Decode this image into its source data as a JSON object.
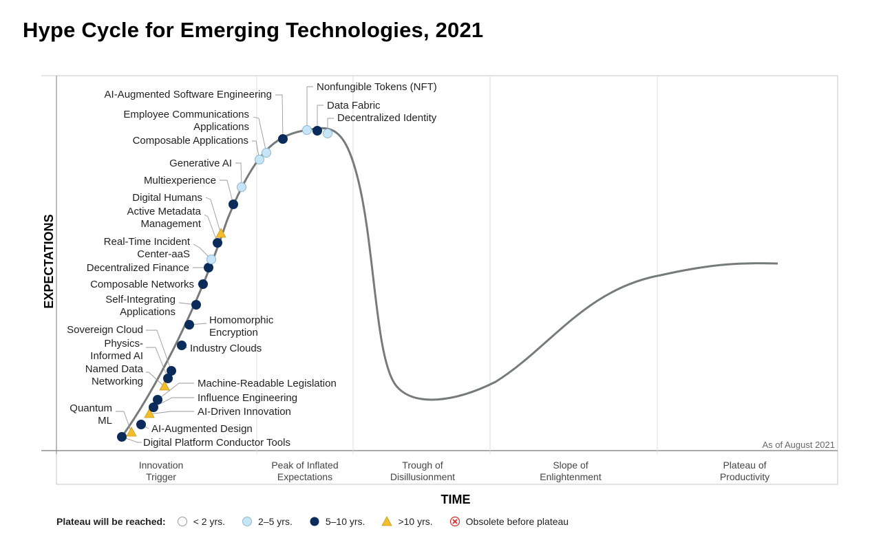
{
  "title": "Hype Cycle for Emerging Technologies, 2021",
  "y_axis_label": "EXPECTATIONS",
  "x_axis_label": "TIME",
  "note": "As of August 2021",
  "phases": [
    {
      "line1": "Innovation",
      "line2": "Trigger"
    },
    {
      "line1": "Peak of Inflated",
      "line2": "Expectations"
    },
    {
      "line1": "Trough of",
      "line2": "Disillusionment"
    },
    {
      "line1": "Slope of",
      "line2": "Enlightenment"
    },
    {
      "line1": "Plateau of",
      "line2": "Productivity"
    }
  ],
  "legend": {
    "title": "Plateau will be reached:",
    "items": [
      {
        "symbol": "white",
        "label": "< 2 yrs."
      },
      {
        "symbol": "light",
        "label": "2–5 yrs."
      },
      {
        "symbol": "dark",
        "label": "5–10 yrs."
      },
      {
        "symbol": "triangle",
        "label": ">10 yrs."
      },
      {
        "symbol": "obsolete",
        "label": "Obsolete before plateau"
      }
    ]
  },
  "colors": {
    "dark": "#0b2c5a",
    "light": "#c6e6f7",
    "triangle": "#f2be2c",
    "curve": "#757b7a",
    "obsolete": "#d62b2b"
  },
  "technologies": [
    {
      "lines": [
        "Digital Platform Conductor Tools"
      ],
      "category": "dark"
    },
    {
      "lines": [
        "Quantum",
        "ML"
      ],
      "category": "triangle"
    },
    {
      "lines": [
        "AI-Augmented Design"
      ],
      "category": "dark"
    },
    {
      "lines": [
        "AI-Driven Innovation"
      ],
      "category": "triangle"
    },
    {
      "lines": [
        "Influence Engineering"
      ],
      "category": "dark"
    },
    {
      "lines": [
        "Machine-Readable Legislation"
      ],
      "category": "dark"
    },
    {
      "lines": [
        "Named Data",
        "Networking"
      ],
      "category": "triangle"
    },
    {
      "lines": [
        "Physics-",
        "Informed AI"
      ],
      "category": "dark"
    },
    {
      "lines": [
        "Sovereign Cloud"
      ],
      "category": "dark"
    },
    {
      "lines": [
        "Industry Clouds"
      ],
      "category": "dark"
    },
    {
      "lines": [
        "Homomorphic",
        "Encryption"
      ],
      "category": "dark"
    },
    {
      "lines": [
        "Self-Integrating",
        "Applications"
      ],
      "category": "dark"
    },
    {
      "lines": [
        "Composable Networks"
      ],
      "category": "dark"
    },
    {
      "lines": [
        "Decentralized Finance"
      ],
      "category": "dark"
    },
    {
      "lines": [
        "Real-Time Incident",
        "Center-aaS"
      ],
      "category": "light"
    },
    {
      "lines": [
        "Active Metadata",
        "Management"
      ],
      "category": "dark"
    },
    {
      "lines": [
        "Digital Humans"
      ],
      "category": "triangle"
    },
    {
      "lines": [
        "Multiexperience"
      ],
      "category": "dark"
    },
    {
      "lines": [
        "Generative AI"
      ],
      "category": "light"
    },
    {
      "lines": [
        "Composable Applications"
      ],
      "category": "light"
    },
    {
      "lines": [
        "Employee Communications",
        "Applications"
      ],
      "category": "light"
    },
    {
      "lines": [
        "AI-Augmented Software Engineering"
      ],
      "category": "dark"
    },
    {
      "lines": [
        "Nonfungible Tokens (NFT)"
      ],
      "category": "light"
    },
    {
      "lines": [
        "Data Fabric"
      ],
      "category": "dark"
    },
    {
      "lines": [
        "Decentralized Identity"
      ],
      "category": "light"
    }
  ]
}
